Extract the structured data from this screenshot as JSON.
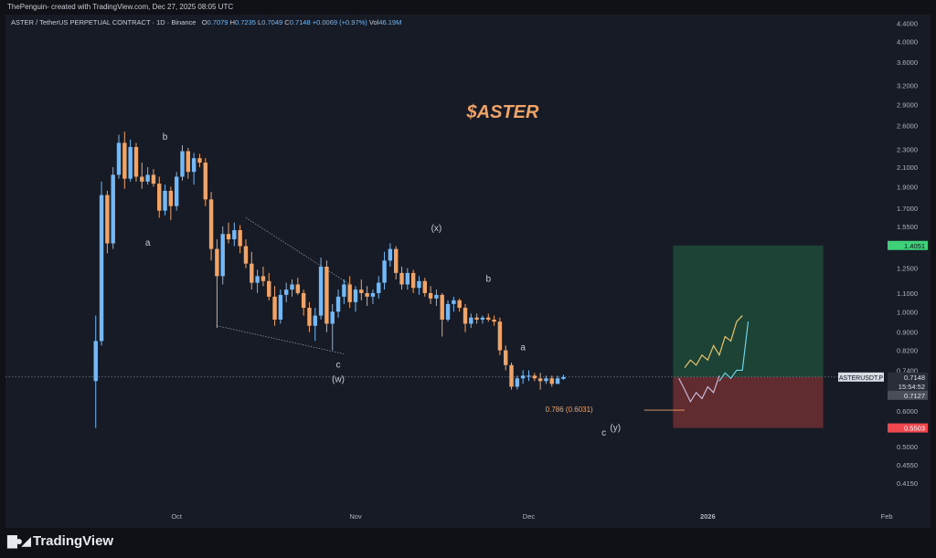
{
  "header": {
    "attribution": "ThePenguin- created with TradingView.com, Dec 27, 2025 08:05 UTC"
  },
  "legend": {
    "symbol": "ASTER / TetherUS PERPETUAL CONTRACT · 1D · Binance",
    "o_label": "O",
    "o_value": "0.7079",
    "h_label": "H",
    "h_value": "0.7235",
    "l_label": "L",
    "l_value": "0.7049",
    "c_label": "C",
    "c_value": "0.7148",
    "change": "+0.0069 (+0.97%)",
    "vol_label": "Vol",
    "vol_value": "46.19M"
  },
  "footer": {
    "brand": "TradingView",
    "logo_icon": "tradingview-logo-icon"
  },
  "colors": {
    "background": "#171b26",
    "up": "#74b8f5",
    "down": "#f0a468",
    "title": "#f0a468",
    "target_zone": "#1f4a3a",
    "stop_zone": "#6e2f33",
    "target_tag": "#3fd17a",
    "stop_tag": "#f0474f"
  },
  "chart_data": {
    "type": "candlestick",
    "title": "$ASTER",
    "y_scale": "log",
    "ylim": [
      0.39,
      4.45
    ],
    "y_ticks": [
      "4.4000",
      "4.0000",
      "3.6000",
      "3.2000",
      "2.9000",
      "2.6000",
      "2.3000",
      "2.1000",
      "1.9000",
      "1.7000",
      "1.5500",
      "1.2500",
      "1.1000",
      "1.0000",
      "0.9000",
      "0.8200",
      "0.7400",
      "0.6000",
      "0.5500",
      "0.5000",
      "0.4550",
      "0.4150"
    ],
    "x_ticks": [
      {
        "label": "Oct",
        "date": "2025-10-01"
      },
      {
        "label": "Nov",
        "date": "2025-11-01"
      },
      {
        "label": "Dec",
        "date": "2025-12-01"
      },
      {
        "label": "2026",
        "date": "2026-01-01"
      },
      {
        "label": "Feb",
        "date": "2026-02-01"
      }
    ],
    "x_range": [
      "2025-09-02",
      "2026-02-07"
    ],
    "series_start": "2025-09-17",
    "candles": [
      [
        0.7,
        0.98,
        0.55,
        0.86
      ],
      [
        0.86,
        1.95,
        0.84,
        1.82
      ],
      [
        1.82,
        1.86,
        1.35,
        1.42
      ],
      [
        1.42,
        2.1,
        1.38,
        2.02
      ],
      [
        2.02,
        2.48,
        1.98,
        2.38
      ],
      [
        2.38,
        2.52,
        1.88,
        1.98
      ],
      [
        1.98,
        2.42,
        1.95,
        2.33
      ],
      [
        2.33,
        2.38,
        1.95,
        2.0
      ],
      [
        2.0,
        2.15,
        1.88,
        1.95
      ],
      [
        1.95,
        2.1,
        1.92,
        2.02
      ],
      [
        2.02,
        2.08,
        1.9,
        1.93
      ],
      [
        1.93,
        2.0,
        1.62,
        1.68
      ],
      [
        1.68,
        1.92,
        1.64,
        1.86
      ],
      [
        1.86,
        1.9,
        1.6,
        1.72
      ],
      [
        1.72,
        2.05,
        1.68,
        2.0
      ],
      [
        2.0,
        2.35,
        1.96,
        2.28
      ],
      [
        2.28,
        2.32,
        1.98,
        2.05
      ],
      [
        2.05,
        2.26,
        1.92,
        2.2
      ],
      [
        2.2,
        2.25,
        2.1,
        2.15
      ],
      [
        2.15,
        2.2,
        1.72,
        1.78
      ],
      [
        1.78,
        1.85,
        1.3,
        1.38
      ],
      [
        1.38,
        1.45,
        0.92,
        1.2
      ],
      [
        1.2,
        1.55,
        1.15,
        1.49
      ],
      [
        1.49,
        1.58,
        1.42,
        1.45
      ],
      [
        1.45,
        1.58,
        1.4,
        1.52
      ],
      [
        1.52,
        1.56,
        1.35,
        1.4
      ],
      [
        1.4,
        1.45,
        1.25,
        1.28
      ],
      [
        1.28,
        1.36,
        1.12,
        1.16
      ],
      [
        1.16,
        1.24,
        1.1,
        1.2
      ],
      [
        1.2,
        1.26,
        1.14,
        1.17
      ],
      [
        1.17,
        1.22,
        1.06,
        1.08
      ],
      [
        1.08,
        1.14,
        0.93,
        0.96
      ],
      [
        0.96,
        1.12,
        0.94,
        1.09
      ],
      [
        1.09,
        1.16,
        1.05,
        1.12
      ],
      [
        1.12,
        1.18,
        1.08,
        1.15
      ],
      [
        1.15,
        1.19,
        1.09,
        1.1
      ],
      [
        1.1,
        1.12,
        0.98,
        1.02
      ],
      [
        1.02,
        1.05,
        0.9,
        0.93
      ],
      [
        0.93,
        1.02,
        0.86,
        0.98
      ],
      [
        0.98,
        1.32,
        0.96,
        1.26
      ],
      [
        1.26,
        1.3,
        0.9,
        0.94
      ],
      [
        0.94,
        1.04,
        0.82,
        1.0
      ],
      [
        1.0,
        1.12,
        0.97,
        1.08
      ],
      [
        1.08,
        1.18,
        1.04,
        1.15
      ],
      [
        1.15,
        1.2,
        1.02,
        1.05
      ],
      [
        1.05,
        1.14,
        1.0,
        1.12
      ],
      [
        1.12,
        1.18,
        1.06,
        1.1
      ],
      [
        1.1,
        1.14,
        1.03,
        1.08
      ],
      [
        1.08,
        1.12,
        1.04,
        1.1
      ],
      [
        1.1,
        1.2,
        1.07,
        1.16
      ],
      [
        1.16,
        1.36,
        1.12,
        1.3
      ],
      [
        1.3,
        1.42,
        1.26,
        1.38
      ],
      [
        1.38,
        1.4,
        1.18,
        1.22
      ],
      [
        1.22,
        1.26,
        1.12,
        1.15
      ],
      [
        1.15,
        1.25,
        1.12,
        1.22
      ],
      [
        1.22,
        1.24,
        1.1,
        1.13
      ],
      [
        1.13,
        1.2,
        1.09,
        1.17
      ],
      [
        1.17,
        1.19,
        1.08,
        1.1
      ],
      [
        1.1,
        1.14,
        1.04,
        1.07
      ],
      [
        1.07,
        1.12,
        1.03,
        1.09
      ],
      [
        1.09,
        1.1,
        0.88,
        0.96
      ],
      [
        0.96,
        1.06,
        0.95,
        1.04
      ],
      [
        1.04,
        1.08,
        1.0,
        1.06
      ],
      [
        1.06,
        1.07,
        1.0,
        1.02
      ],
      [
        1.02,
        1.04,
        0.9,
        0.94
      ],
      [
        0.94,
        0.99,
        0.92,
        0.97
      ],
      [
        0.97,
        0.99,
        0.94,
        0.96
      ],
      [
        0.96,
        0.98,
        0.94,
        0.97
      ],
      [
        0.97,
        0.99,
        0.95,
        0.96
      ],
      [
        0.96,
        0.98,
        0.93,
        0.95
      ],
      [
        0.95,
        0.97,
        0.8,
        0.82
      ],
      [
        0.82,
        0.84,
        0.74,
        0.76
      ],
      [
        0.76,
        0.77,
        0.67,
        0.68
      ],
      [
        0.68,
        0.72,
        0.67,
        0.71
      ],
      [
        0.71,
        0.74,
        0.69,
        0.72
      ],
      [
        0.72,
        0.74,
        0.7,
        0.72
      ],
      [
        0.72,
        0.73,
        0.7,
        0.71
      ],
      [
        0.71,
        0.73,
        0.67,
        0.7
      ],
      [
        0.7,
        0.72,
        0.69,
        0.71
      ],
      [
        0.71,
        0.72,
        0.68,
        0.69
      ],
      [
        0.69,
        0.72,
        0.69,
        0.71
      ],
      [
        0.7079,
        0.7235,
        0.7049,
        0.7148
      ]
    ],
    "annotations": [
      {
        "text": "a",
        "date": "2025-09-26",
        "price": 1.42
      },
      {
        "text": "b",
        "date": "2025-09-29",
        "price": 2.45
      },
      {
        "text": "c",
        "date": "2025-10-29",
        "price": 0.76
      },
      {
        "text": "(w)",
        "date": "2025-10-29",
        "price": 0.705
      },
      {
        "text": "(x)",
        "date": "2025-11-15",
        "price": 1.53
      },
      {
        "text": "b",
        "date": "2025-11-24",
        "price": 1.18
      },
      {
        "text": "a",
        "date": "2025-11-30",
        "price": 0.83
      },
      {
        "text": "c",
        "date": "2025-12-14",
        "price": 0.535
      },
      {
        "text": "(y)",
        "date": "2025-12-16",
        "price": 0.55
      },
      {
        "text": "0.786 (0.6031)",
        "date": "2025-12-08",
        "price": 0.6031
      }
    ],
    "position": {
      "entry": 0.7148,
      "target": 1.4051,
      "stop": 0.5503,
      "start_date": "2025-12-26",
      "end_date": "2026-01-21"
    },
    "price_labels": [
      {
        "text": "1.4051",
        "price": 1.4051,
        "kind": "target"
      },
      {
        "text": "0.7148",
        "price": 0.7148,
        "kind": "current"
      },
      {
        "text": "15:54:52",
        "price": 0.7148,
        "kind": "countdown"
      },
      {
        "text": "0.7127",
        "price": 0.7127,
        "kind": "prev"
      },
      {
        "text": "0.5503",
        "price": 0.5503,
        "kind": "stop"
      }
    ],
    "symbol_tag": "ASTERUSDT.P"
  }
}
